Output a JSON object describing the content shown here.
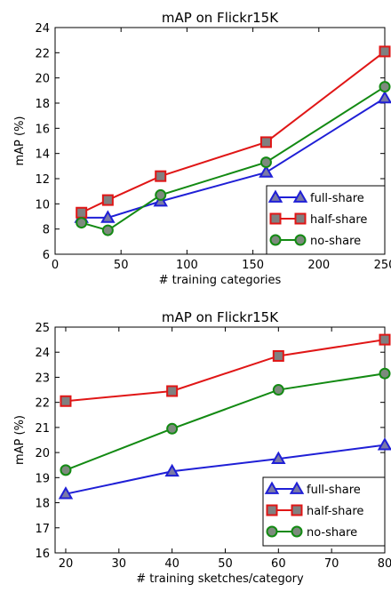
{
  "chart_data": [
    {
      "type": "line",
      "title": "mAP on Flickr15K",
      "xlabel": "# training categories",
      "ylabel": "mAP (%)",
      "xlim": [
        0,
        250
      ],
      "ylim": [
        6,
        24
      ],
      "xticks": [
        0,
        50,
        100,
        150,
        200,
        250
      ],
      "yticks": [
        6,
        8,
        10,
        12,
        14,
        16,
        18,
        20,
        22,
        24
      ],
      "x": [
        20,
        40,
        80,
        160,
        250
      ],
      "legend_position": "bottom-right",
      "grid": false,
      "series": [
        {
          "name": "full-share",
          "values": [
            8.9,
            8.9,
            10.2,
            12.5,
            18.4
          ],
          "color": "#1f1fd6",
          "fill": "#7a7aa6",
          "marker": "triangle"
        },
        {
          "name": "half-share",
          "values": [
            9.3,
            10.3,
            12.2,
            14.9,
            22.1
          ],
          "color": "#e01616",
          "fill": "#808080",
          "marker": "square"
        },
        {
          "name": "no-share",
          "values": [
            8.5,
            7.9,
            10.7,
            13.3,
            19.3
          ],
          "color": "#138a13",
          "fill": "#7d8a7d",
          "marker": "circle"
        }
      ]
    },
    {
      "type": "line",
      "title": "mAP on Flickr15K",
      "xlabel": "# training sketches/category",
      "ylabel": "mAP (%)",
      "xlim": [
        18,
        80
      ],
      "ylim": [
        16,
        25
      ],
      "xticks": [
        20,
        30,
        40,
        50,
        60,
        70,
        80
      ],
      "yticks": [
        16,
        17,
        18,
        19,
        20,
        21,
        22,
        23,
        24,
        25
      ],
      "x": [
        20,
        40,
        60,
        80
      ],
      "legend_position": "bottom-right",
      "grid": false,
      "series": [
        {
          "name": "full-share",
          "values": [
            18.35,
            19.25,
            19.75,
            20.3
          ],
          "color": "#1f1fd6",
          "fill": "#7a7aa6",
          "marker": "triangle"
        },
        {
          "name": "half-share",
          "values": [
            22.05,
            22.45,
            23.85,
            24.5
          ],
          "color": "#e01616",
          "fill": "#808080",
          "marker": "square"
        },
        {
          "name": "no-share",
          "values": [
            19.3,
            20.95,
            22.5,
            23.15
          ],
          "color": "#138a13",
          "fill": "#7d8a7d",
          "marker": "circle"
        }
      ]
    }
  ]
}
